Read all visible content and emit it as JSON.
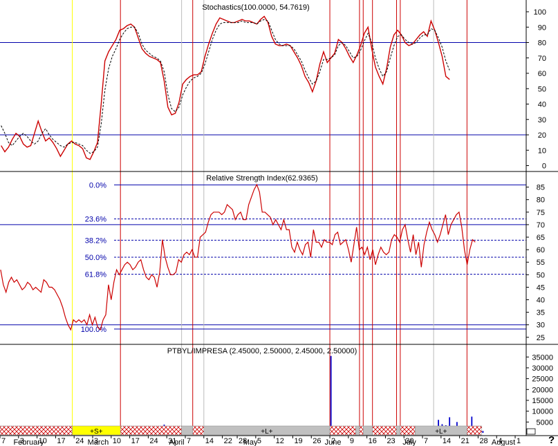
{
  "colors": {
    "price_line": "#cc0000",
    "signal_line": "#000000",
    "level_line": "#0000aa",
    "event_red": "#cc0000",
    "event_gray": "#bbbbbb",
    "event_yellow": "#ffff00",
    "volume": "#0000cc",
    "fib_text": "#0000aa",
    "hatch": "#cc0000",
    "band_gray": "#c0c0c0",
    "band_yellow": "#ffff00"
  },
  "x_axis": {
    "day_labels": [
      {
        "idx": 0,
        "text": "7"
      },
      {
        "idx": 5,
        "text": "3"
      },
      {
        "idx": 10,
        "text": "10"
      },
      {
        "idx": 15,
        "text": "17"
      },
      {
        "idx": 20,
        "text": "24"
      },
      {
        "idx": 25,
        "text": "3"
      },
      {
        "idx": 30,
        "text": "10"
      },
      {
        "idx": 35,
        "text": "17"
      },
      {
        "idx": 40,
        "text": "24"
      },
      {
        "idx": 45,
        "text": "31"
      },
      {
        "idx": 50,
        "text": "7"
      },
      {
        "idx": 55,
        "text": "14"
      },
      {
        "idx": 60,
        "text": "22"
      },
      {
        "idx": 64,
        "text": "28"
      },
      {
        "idx": 69,
        "text": "5"
      },
      {
        "idx": 74,
        "text": "12"
      },
      {
        "idx": 79,
        "text": "19"
      },
      {
        "idx": 84,
        "text": "26"
      },
      {
        "idx": 89,
        "text": "2"
      },
      {
        "idx": 94,
        "text": "9"
      },
      {
        "idx": 99,
        "text": "16"
      },
      {
        "idx": 104,
        "text": "23"
      },
      {
        "idx": 109,
        "text": "30"
      },
      {
        "idx": 114,
        "text": "7"
      },
      {
        "idx": 119,
        "text": "14"
      },
      {
        "idx": 124,
        "text": "21"
      },
      {
        "idx": 129,
        "text": "28"
      },
      {
        "idx": 134,
        "text": "4"
      },
      {
        "idx": 139,
        "text": "1"
      }
    ],
    "month_labels": [
      {
        "idx": 4,
        "text": "February"
      },
      {
        "idx": 24,
        "text": "March"
      },
      {
        "idx": 46,
        "text": "April"
      },
      {
        "idx": 66,
        "text": "May"
      },
      {
        "idx": 88,
        "text": "June"
      },
      {
        "idx": 109,
        "text": "July"
      },
      {
        "idx": 133,
        "text": "August"
      }
    ],
    "corner_text": "?"
  },
  "events": [
    {
      "idx": 19.5,
      "color": "yellow"
    },
    {
      "idx": 32.5,
      "color": "red"
    },
    {
      "idx": 49,
      "color": "gray"
    },
    {
      "idx": 52,
      "color": "red"
    },
    {
      "idx": 55,
      "color": "gray"
    },
    {
      "idx": 89,
      "color": "red"
    },
    {
      "idx": 97,
      "color": "red"
    },
    {
      "idx": 98,
      "color": "red"
    },
    {
      "idx": 100.5,
      "color": "red"
    },
    {
      "idx": 107,
      "color": "red"
    },
    {
      "idx": 108,
      "color": "red"
    },
    {
      "idx": 117,
      "color": "gray"
    },
    {
      "idx": 126,
      "color": "red"
    }
  ],
  "bands": [
    {
      "from": 0,
      "to": 19.5,
      "type": "hatch",
      "label": ""
    },
    {
      "from": 19.5,
      "to": 32.5,
      "type": "yellow",
      "label": "+S+"
    },
    {
      "from": 32.5,
      "to": 49,
      "type": "hatch",
      "label": ""
    },
    {
      "from": 49,
      "to": 52,
      "type": "gray",
      "label": ""
    },
    {
      "from": 52,
      "to": 55,
      "type": "hatch",
      "label": ""
    },
    {
      "from": 55,
      "to": 89,
      "type": "gray",
      "label": "+L+"
    },
    {
      "from": 89,
      "to": 96,
      "type": "hatch",
      "label": ""
    },
    {
      "from": 96,
      "to": 97,
      "type": "gray",
      "label": ""
    },
    {
      "from": 97,
      "to": 98,
      "type": "hatch",
      "label": ""
    },
    {
      "from": 98,
      "to": 100.5,
      "type": "gray",
      "label": ""
    },
    {
      "from": 100.5,
      "to": 107,
      "type": "hatch",
      "label": ""
    },
    {
      "from": 107,
      "to": 108,
      "type": "gray",
      "label": ""
    },
    {
      "from": 108,
      "to": 112,
      "type": "hatch",
      "label": ""
    },
    {
      "from": 112,
      "to": 126,
      "type": "gray",
      "label": "+L+"
    },
    {
      "from": 126,
      "to": 130,
      "type": "hatch",
      "label": ""
    }
  ],
  "chart_data": [
    {
      "type": "line",
      "title": "Stochastics(100.0000, 54.7619)",
      "ylim": [
        -8,
        107
      ],
      "yticks": [
        0,
        10,
        20,
        30,
        40,
        50,
        60,
        70,
        80,
        90,
        100
      ],
      "levels": [
        20,
        80
      ],
      "series": [
        {
          "values": [
            13,
            9,
            12,
            17,
            21,
            19,
            14,
            12,
            13,
            21,
            29,
            22,
            16,
            18,
            15,
            11,
            6,
            10,
            14,
            16,
            14,
            13,
            11,
            5,
            4,
            9,
            15,
            40,
            68,
            74,
            78,
            82,
            88,
            89,
            91,
            92,
            90,
            83,
            76,
            73,
            71,
            70,
            69,
            67,
            55,
            38,
            33,
            34,
            41,
            53,
            56,
            58,
            59,
            59,
            61,
            71,
            79,
            86,
            92,
            96,
            95,
            94,
            93,
            93,
            94,
            95,
            94,
            94,
            93,
            92,
            95,
            97,
            93,
            84,
            79,
            78,
            78,
            79,
            78,
            74,
            70,
            65,
            58,
            54,
            48,
            55,
            66,
            74,
            67,
            70,
            73,
            82,
            80,
            76,
            71,
            67,
            72,
            78,
            86,
            90,
            76,
            64,
            58,
            53,
            63,
            77,
            85,
            88,
            85,
            80,
            78,
            79,
            82,
            85,
            87,
            84,
            94,
            88,
            80,
            71,
            58,
            56
          ]
        },
        {
          "values": [
            26,
            21,
            15,
            13,
            16,
            19,
            21,
            19,
            16,
            14,
            16,
            21,
            24,
            20,
            17,
            15,
            13,
            12,
            14,
            15,
            15,
            14,
            13,
            10,
            8,
            9,
            12,
            27,
            49,
            63,
            71,
            76,
            82,
            86,
            89,
            90,
            90,
            86,
            79,
            75,
            73,
            71,
            70,
            68,
            61,
            46,
            37,
            35,
            38,
            46,
            51,
            55,
            57,
            58,
            60,
            66,
            74,
            82,
            88,
            92,
            93,
            93,
            93,
            93,
            93,
            94,
            93,
            93,
            93,
            92,
            94,
            95,
            94,
            88,
            82,
            79,
            78,
            78,
            78,
            76,
            72,
            68,
            62,
            57,
            53,
            55,
            61,
            69,
            69,
            70,
            72,
            78,
            80,
            78,
            74,
            70,
            71,
            75,
            81,
            86,
            80,
            70,
            63,
            58,
            61,
            70,
            78,
            84,
            85,
            82,
            80,
            79,
            80,
            83,
            85,
            85,
            89,
            88,
            83,
            77,
            68,
            62
          ]
        }
      ]
    },
    {
      "type": "line",
      "title": "Relative Strength Index(62.9365)",
      "ylim": [
        22,
        88
      ],
      "yticks": [
        25,
        30,
        35,
        40,
        45,
        50,
        55,
        60,
        65,
        70,
        75,
        80,
        85
      ],
      "levels": [
        30,
        70
      ],
      "fib_levels": [
        {
          "label": "0.0%",
          "value": 85.9
        },
        {
          "label": "23.6%",
          "value": 72.3
        },
        {
          "label": "38.2%",
          "value": 63.8
        },
        {
          "label": "50.0%",
          "value": 57.0
        },
        {
          "label": "61.8%",
          "value": 50.2
        },
        {
          "label": "100.0%",
          "value": 28.3
        }
      ],
      "series": [
        {
          "values": [
            52,
            46,
            43,
            47,
            49,
            47,
            48,
            46,
            44,
            45,
            47,
            46,
            44,
            45,
            44,
            43,
            48,
            47,
            45,
            45,
            44,
            42,
            40,
            37,
            33,
            30,
            28,
            32,
            31,
            32,
            31,
            32,
            30,
            34,
            30,
            33,
            29,
            28,
            32,
            34,
            46,
            40,
            47,
            52,
            50,
            52,
            54,
            55,
            54,
            52,
            53,
            55,
            56,
            52,
            49,
            48,
            50,
            49,
            45,
            51,
            64,
            57,
            53,
            50,
            50,
            51,
            56,
            55,
            58,
            59,
            58,
            60,
            57,
            57,
            65,
            66,
            67,
            71,
            74,
            75,
            75,
            75,
            74,
            75,
            78,
            77,
            76,
            72,
            74,
            75,
            72,
            72,
            78,
            81,
            84,
            86,
            83,
            75,
            75,
            74,
            73,
            70,
            72,
            70,
            68,
            72,
            68,
            68,
            61,
            59,
            63,
            60,
            58,
            62,
            63,
            57,
            68,
            63,
            63,
            61,
            64,
            63,
            63,
            62,
            66,
            67,
            62,
            63,
            64,
            60,
            55,
            62,
            69,
            60,
            61,
            58,
            61,
            56,
            60,
            54,
            58,
            61,
            59,
            58,
            59,
            64,
            66,
            65,
            63,
            68,
            70,
            64,
            59,
            66,
            58,
            63,
            53,
            62,
            67,
            71,
            68,
            66,
            63,
            66,
            70,
            74,
            66,
            70,
            72,
            74,
            75,
            69,
            60,
            54,
            60,
            64,
            63
          ]
        }
      ]
    },
    {
      "type": "bar",
      "title": "PTBYL/IMPRESA (2.45000, 2.50000, 2.45000, 2.50000)",
      "ylim": [
        0,
        37000
      ],
      "yticks": [
        5000,
        10000,
        15000,
        20000,
        25000,
        30000,
        35000
      ],
      "series": [
        {
          "name": "Volume",
          "values": [
            1800,
            1200,
            900,
            1600,
            1100,
            800,
            1500,
            1300,
            900,
            1700,
            1000,
            600,
            1200,
            1400,
            900,
            1600,
            1800,
            1100,
            800,
            1300,
            900,
            1400,
            1100,
            700,
            1500,
            1000,
            1200,
            800,
            1600,
            1300,
            900,
            1100,
            1500,
            1000,
            800,
            1700,
            1200,
            900,
            1400,
            1100,
            800,
            1300,
            900,
            1600,
            3800,
            1200,
            900,
            1500,
            800,
            1100,
            1300,
            900,
            1600,
            1200,
            800,
            1000,
            1400,
            1100,
            900,
            1300,
            1000,
            1500,
            1200,
            800,
            1100,
            1400,
            900,
            1300,
            1600,
            1000,
            900,
            1200,
            1500,
            800,
            1100,
            1400,
            1000,
            1200,
            1600,
            900,
            1300,
            1100,
            800,
            1400,
            1200,
            900,
            1000,
            1500,
            3200,
            35500,
            1800,
            1200,
            900,
            1400,
            1100,
            2200,
            1000,
            1300,
            900,
            1600,
            1200,
            800,
            1100,
            1500,
            900,
            1300,
            1000,
            1800,
            1200,
            900,
            1400,
            1100,
            2400,
            1600,
            1200,
            3000,
            2400,
            1800,
            6000,
            4000,
            3500,
            7200,
            3000,
            5000,
            3200,
            2400,
            1800,
            7500,
            2800,
            1200,
            900
          ]
        }
      ]
    }
  ]
}
